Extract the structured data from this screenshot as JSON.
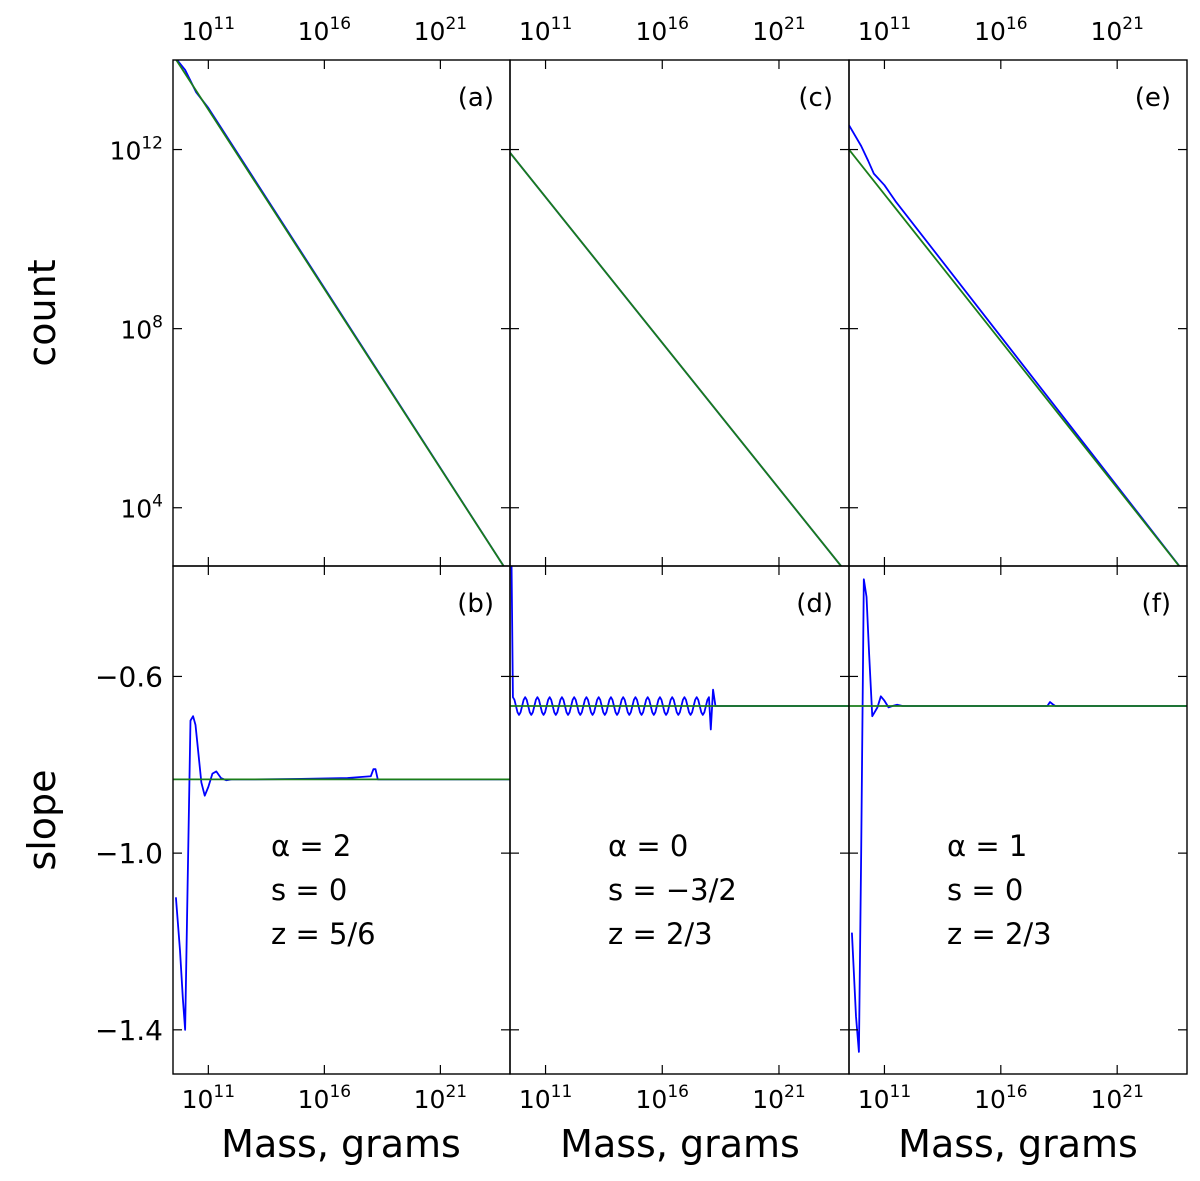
{
  "figure": {
    "ylabel_top": "count",
    "ylabel_bottom": "slope",
    "xlabel": "Mass, grams",
    "colors": {
      "simulation": "#0000ff",
      "fit": "#1a7d1a"
    }
  },
  "chart_data": [
    {
      "panel": "(a)",
      "type": "line",
      "position": "top-left",
      "xscale": "log",
      "yscale": "log",
      "xlim": [
        3000000000.0,
        1e+24
      ],
      "ylim": [
        500,
        100000000000000.0
      ],
      "xticks": [
        "10^11",
        "10^16",
        "10^21"
      ],
      "yticks": [
        "10^12",
        "10^8",
        "10^4"
      ],
      "series": [
        {
          "color": "#0000ff",
          "x": [
            3000000000.0,
            10000000000.0,
            30000000000.0,
            100000000000.0,
            1e+24
          ],
          "y": [
            130000000000000.0,
            60000000000000.0,
            19000000000000.0,
            8500000000000.0,
            300.0
          ]
        },
        {
          "color": "#1a7d1a",
          "x": [
            3000000000.0,
            1e+24
          ],
          "y": [
            130000000000000.0,
            300.0
          ]
        }
      ]
    },
    {
      "panel": "(b)",
      "type": "line",
      "position": "bottom-left",
      "xscale": "log",
      "yscale": "linear",
      "xlim": [
        3000000000.0,
        1e+24
      ],
      "ylim": [
        -1.5,
        -0.35
      ],
      "xticks": [
        "10^11",
        "10^16",
        "10^21"
      ],
      "yticks": [
        "−0.6",
        "−1.0",
        "−1.4"
      ],
      "annotation": {
        "alpha": "α = 2",
        "s": "s = 0",
        "z": "z = 5/6"
      },
      "series": [
        {
          "color": "#0000ff",
          "x": [
            4000000000.0,
            6000000000.0,
            8000000000.0,
            10000000000.0,
            13000000000.0,
            17000000000.0,
            22000000000.0,
            28000000000.0,
            35000000000.0,
            50000000000.0,
            70000000000.0,
            100000000000.0,
            150000000000.0,
            220000000000.0,
            350000000000.0,
            600000000000.0,
            1000000000000.0,
            2000000000000.0,
            10000000000000.0,
            1000000000000000.0,
            1e+17,
            1e+18,
            1.3e+18,
            1.6e+18,
            2e+18,
            1e+24
          ],
          "y": [
            -1.1,
            -1.22,
            -1.33,
            -1.4,
            -1.05,
            -0.7,
            -0.69,
            -0.71,
            -0.76,
            -0.84,
            -0.87,
            -0.85,
            -0.82,
            -0.815,
            -0.83,
            -0.835,
            -0.833,
            -0.833,
            -0.833,
            -0.832,
            -0.83,
            -0.826,
            -0.81,
            -0.81,
            -0.833,
            -0.833
          ]
        },
        {
          "color": "#1a7d1a",
          "x": [
            3000000000.0,
            1e+24
          ],
          "y": [
            -0.833,
            -0.833
          ]
        }
      ]
    },
    {
      "panel": "(c)",
      "type": "line",
      "position": "top-middle",
      "xscale": "log",
      "yscale": "log",
      "xlim": [
        3000000000.0,
        1e+24
      ],
      "ylim": [
        500,
        100000000000000.0
      ],
      "xticks": [
        "10^11",
        "10^16",
        "10^21"
      ],
      "yticks": [],
      "series": [
        {
          "color": "#0000ff",
          "x": [
            3000000000.0,
            1e+24
          ],
          "y": [
            850000000000.0,
            300.0
          ]
        },
        {
          "color": "#1a7d1a",
          "x": [
            3000000000.0,
            1e+24
          ],
          "y": [
            850000000000.0,
            300.0
          ]
        }
      ]
    },
    {
      "panel": "(d)",
      "type": "line",
      "position": "bottom-middle",
      "xscale": "log",
      "yscale": "linear",
      "xlim": [
        3000000000.0,
        1e+24
      ],
      "ylim": [
        -1.5,
        -0.35
      ],
      "xticks": [
        "10^11",
        "10^16",
        "10^21"
      ],
      "yticks": [],
      "annotation": {
        "alpha": "α = 0",
        "s": "s = −3/2",
        "z": "z = 2/3"
      },
      "series": [
        {
          "color": "#0000ff",
          "note": "oscillates between -0.647 and -0.687 from 4e9 to 1e18",
          "x": [
            3500000000.0,
            4000000000.0,
            1e+18,
            1.2e+18,
            1.5e+18,
            1.9e+18,
            1e+24
          ],
          "y": [
            -0.35,
            -0.647,
            -0.647,
            -0.72,
            -0.63,
            -0.667,
            -0.667
          ]
        },
        {
          "color": "#1a7d1a",
          "x": [
            3000000000.0,
            1e+24
          ],
          "y": [
            -0.667,
            -0.667
          ]
        }
      ]
    },
    {
      "panel": "(e)",
      "type": "line",
      "position": "top-right",
      "xscale": "log",
      "yscale": "log",
      "xlim": [
        3000000000.0,
        1e+24
      ],
      "ylim": [
        500,
        100000000000000.0
      ],
      "xticks": [
        "10^11",
        "10^16",
        "10^21"
      ],
      "yticks": [],
      "series": [
        {
          "color": "#0000ff",
          "x": [
            3000000000.0,
            10000000000.0,
            20000000000.0,
            35000000000.0,
            100000000000.0,
            300000000000.0,
            1e+24
          ],
          "y": [
            3500000000000.0,
            1200000000000.0,
            560000000000.0,
            290000000000.0,
            160000000000.0,
            70000000000.0,
            300.0
          ]
        },
        {
          "color": "#1a7d1a",
          "x": [
            3000000000.0,
            1e+24
          ],
          "y": [
            1000000000000.0,
            300.0
          ]
        }
      ]
    },
    {
      "panel": "(f)",
      "type": "line",
      "position": "bottom-right",
      "xscale": "log",
      "yscale": "linear",
      "xlim": [
        3000000000.0,
        1e+24
      ],
      "ylim": [
        -1.5,
        -0.35
      ],
      "xticks": [
        "10^11",
        "10^16",
        "10^21"
      ],
      "yticks": [],
      "annotation": {
        "alpha": "α = 1",
        "s": "s = 0",
        "z": "z = 2/3"
      },
      "series": [
        {
          "color": "#0000ff",
          "x": [
            4000000000.0,
            6000000000.0,
            8000000000.0,
            10000000000.0,
            13000000000.0,
            17000000000.0,
            22000000000.0,
            30000000000.0,
            50000000000.0,
            70000000000.0,
            100000000000.0,
            150000000000.0,
            220000000000.0,
            350000000000.0,
            600000000000.0,
            1000000000000.0,
            3000000000000.0,
            100000000000000.0,
            1e+16,
            1e+17,
            1e+18,
            1.3e+18,
            1.7e+18,
            2.2e+18,
            1e+24
          ],
          "y": [
            -1.18,
            -1.37,
            -1.45,
            -1.0,
            -0.38,
            -0.42,
            -0.55,
            -0.69,
            -0.67,
            -0.645,
            -0.655,
            -0.67,
            -0.667,
            -0.664,
            -0.667,
            -0.667,
            -0.667,
            -0.667,
            -0.667,
            -0.667,
            -0.667,
            -0.658,
            -0.663,
            -0.667,
            -0.667
          ]
        },
        {
          "color": "#1a7d1a",
          "x": [
            3000000000.0,
            1e+24
          ],
          "y": [
            -0.667,
            -0.667
          ]
        }
      ]
    }
  ]
}
